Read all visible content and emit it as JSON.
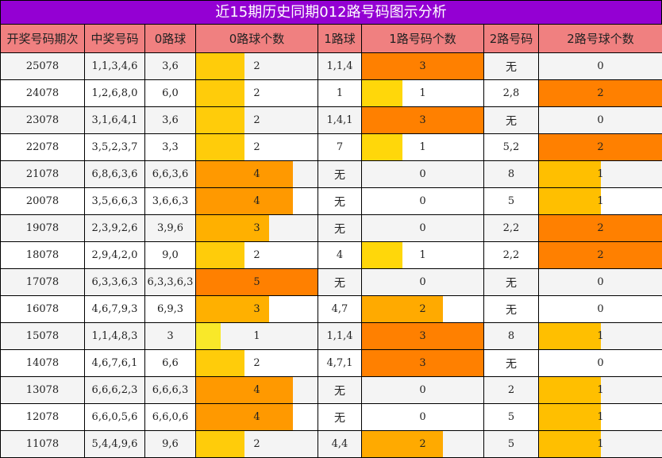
{
  "title": "近15期历史同期012路号码图示分析",
  "headers": [
    "开奖号码期次",
    "中奖号码",
    "0路球",
    "0路球个数",
    "1路球",
    "1路号码个数",
    "2路号码",
    "2路号球个数"
  ],
  "colors": {
    "title_bg": "#9400d3",
    "header_bg": "#f08080",
    "row_odd_bg": "#f4f4f4",
    "row_even_bg": "#ffffff",
    "road0": {
      "1": "#f9e829",
      "2": "#ffcc0a",
      "3": "#ffb000",
      "4": "#ff9900",
      "5": "#ff8000"
    },
    "road1": {
      "1": "#ffd70a",
      "2": "#ffaa00",
      "3": "#ff8000"
    },
    "road2": {
      "1": "#ffbf00",
      "2": "#ff8000"
    }
  },
  "scale_max": {
    "road0": 5,
    "road1": 3,
    "road2": 2
  },
  "rows": [
    {
      "period": "25078",
      "numbers": "1,1,3,4,6",
      "road0": "3,6",
      "road0_count": 2,
      "road1": "1,1,4",
      "road1_count": 3,
      "road2": "无",
      "road2_count": 0
    },
    {
      "period": "24078",
      "numbers": "1,2,6,8,0",
      "road0": "6,0",
      "road0_count": 2,
      "road1": "1",
      "road1_count": 1,
      "road2": "2,8",
      "road2_count": 2
    },
    {
      "period": "23078",
      "numbers": "3,1,6,4,1",
      "road0": "3,6",
      "road0_count": 2,
      "road1": "1,4,1",
      "road1_count": 3,
      "road2": "无",
      "road2_count": 0
    },
    {
      "period": "22078",
      "numbers": "3,5,2,3,7",
      "road0": "3,3",
      "road0_count": 2,
      "road1": "7",
      "road1_count": 1,
      "road2": "5,2",
      "road2_count": 2
    },
    {
      "period": "21078",
      "numbers": "6,8,6,3,6",
      "road0": "6,6,3,6",
      "road0_count": 4,
      "road1": "无",
      "road1_count": 0,
      "road2": "8",
      "road2_count": 1
    },
    {
      "period": "20078",
      "numbers": "3,5,6,6,3",
      "road0": "3,6,6,3",
      "road0_count": 4,
      "road1": "无",
      "road1_count": 0,
      "road2": "5",
      "road2_count": 1
    },
    {
      "period": "19078",
      "numbers": "2,3,9,2,6",
      "road0": "3,9,6",
      "road0_count": 3,
      "road1": "无",
      "road1_count": 0,
      "road2": "2,2",
      "road2_count": 2
    },
    {
      "period": "18078",
      "numbers": "2,9,4,2,0",
      "road0": "9,0",
      "road0_count": 2,
      "road1": "4",
      "road1_count": 1,
      "road2": "2,2",
      "road2_count": 2
    },
    {
      "period": "17078",
      "numbers": "6,3,3,6,3",
      "road0": "6,3,3,6,3",
      "road0_count": 5,
      "road1": "无",
      "road1_count": 0,
      "road2": "无",
      "road2_count": 0
    },
    {
      "period": "16078",
      "numbers": "4,6,7,9,3",
      "road0": "6,9,3",
      "road0_count": 3,
      "road1": "4,7",
      "road1_count": 2,
      "road2": "无",
      "road2_count": 0
    },
    {
      "period": "15078",
      "numbers": "1,1,4,8,3",
      "road0": "3",
      "road0_count": 1,
      "road1": "1,1,4",
      "road1_count": 3,
      "road2": "8",
      "road2_count": 1
    },
    {
      "period": "14078",
      "numbers": "4,6,7,6,1",
      "road0": "6,6",
      "road0_count": 2,
      "road1": "4,7,1",
      "road1_count": 3,
      "road2": "无",
      "road2_count": 0
    },
    {
      "period": "13078",
      "numbers": "6,6,6,2,3",
      "road0": "6,6,6,3",
      "road0_count": 4,
      "road1": "无",
      "road1_count": 0,
      "road2": "2",
      "road2_count": 1
    },
    {
      "period": "12078",
      "numbers": "6,6,0,5,6",
      "road0": "6,6,0,6",
      "road0_count": 4,
      "road1": "无",
      "road1_count": 0,
      "road2": "5",
      "road2_count": 1
    },
    {
      "period": "11078",
      "numbers": "5,4,4,9,6",
      "road0": "9,6",
      "road0_count": 2,
      "road1": "4,4",
      "road1_count": 2,
      "road2": "5",
      "road2_count": 1
    }
  ]
}
